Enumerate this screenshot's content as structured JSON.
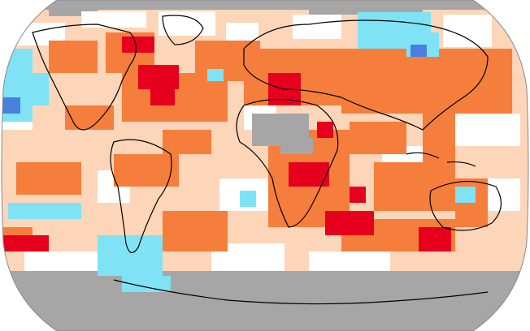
{
  "map": {
    "projection": "Robinson",
    "type": "gridded temperature anomaly map",
    "colors": {
      "no_data": "#a6a6a6",
      "neutral": "#ffffff",
      "warm_light": "#fdd5b8",
      "warm_medium": "#f57e3c",
      "warm_strong": "#f03f17",
      "warm_extreme": "#e6001d",
      "cool_light": "#7fe3f5",
      "cool_medium": "#44c8f0",
      "cool_strong": "#4a7fe0",
      "coastline": "#000000"
    },
    "regions": [
      {
        "id": "arctic-band",
        "category": "no_data"
      },
      {
        "id": "antarctic-band",
        "category": "no_data"
      },
      {
        "id": "central-africa",
        "category": "no_data"
      },
      {
        "id": "north-atlantic",
        "category": "warm_medium"
      },
      {
        "id": "europe-mediterranean",
        "category": "warm_extreme"
      },
      {
        "id": "east-siberia",
        "category": "cool_light"
      },
      {
        "id": "north-pacific-east",
        "category": "cool_light"
      },
      {
        "id": "south-indian-ocean",
        "category": "warm_extreme"
      },
      {
        "id": "south-pacific-east",
        "category": "cool_light"
      }
    ]
  }
}
